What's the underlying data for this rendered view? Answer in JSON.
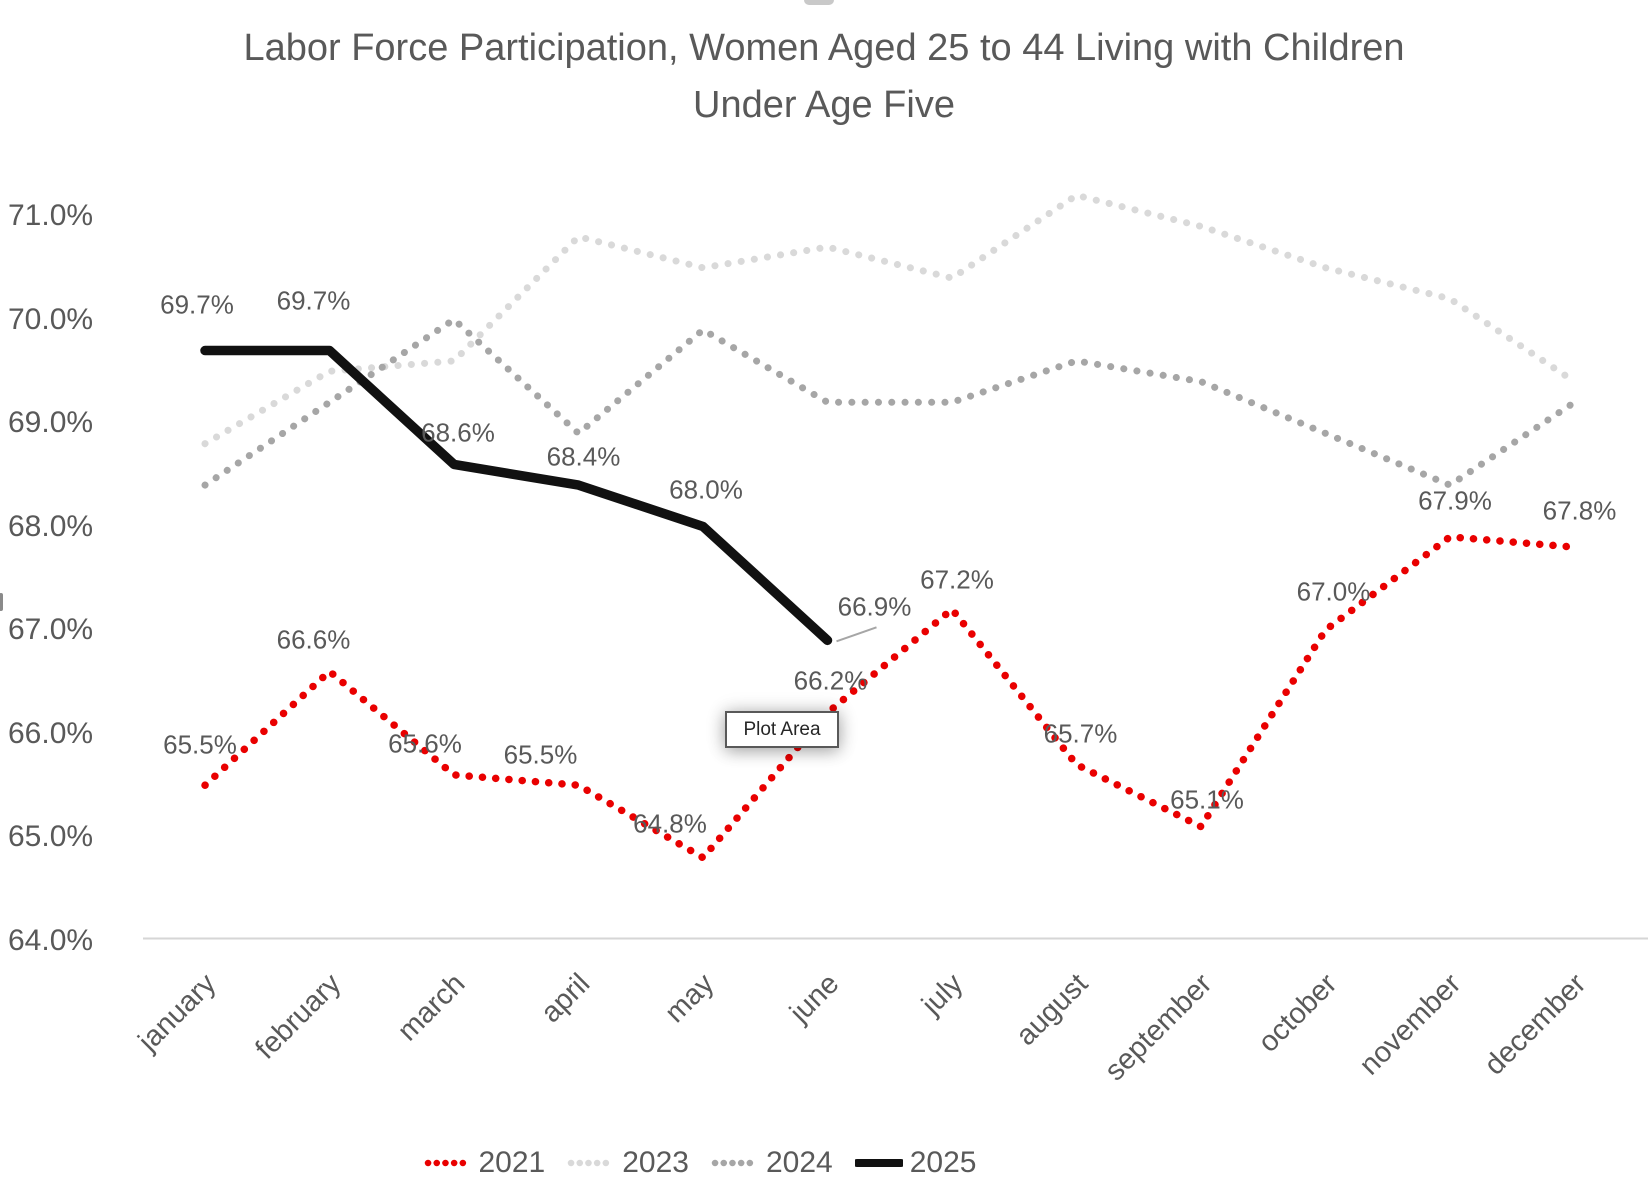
{
  "title": {
    "line1": "Labor Force Participation, Women Aged 25 to 44 Living with Children",
    "line2": "Under Age Five"
  },
  "tooltip": {
    "text": "Plot Area"
  },
  "colors": {
    "background": "#ffffff",
    "title_text": "#595959",
    "axis_text": "#595959",
    "data_label_text": "#595959",
    "axis_line": "#d6d6d6",
    "leader_line": "#a6a6a6"
  },
  "chart_data": {
    "type": "line",
    "title": "Labor Force Participation, Women Aged 25 to 44 Living with Children Under Age Five",
    "categories": [
      "january",
      "february",
      "march",
      "april",
      "may",
      "june",
      "july",
      "august",
      "september",
      "october",
      "november",
      "december"
    ],
    "xlabel": "",
    "ylabel": "",
    "y_axis": {
      "min": 64.0,
      "max": 71.0,
      "step": 1.0,
      "gridlines": "baseline-only",
      "ticks": [
        {
          "label": "71.0%",
          "value": 71.0
        },
        {
          "label": "70.0%",
          "value": 70.0
        },
        {
          "label": "69.0%",
          "value": 69.0
        },
        {
          "label": "68.0%",
          "value": 68.0
        },
        {
          "label": "67.0%",
          "value": 67.0
        },
        {
          "label": "66.0%",
          "value": 66.0
        },
        {
          "label": "65.0%",
          "value": 65.0
        },
        {
          "label": "64.0%",
          "value": 64.0
        }
      ]
    },
    "legend": {
      "position": "bottom",
      "items": [
        "2021",
        "2023",
        "2024",
        "2025"
      ]
    },
    "series": [
      {
        "name": "2021",
        "color": "#e90000",
        "style": "dotted",
        "values": [
          65.5,
          66.6,
          65.6,
          65.5,
          64.8,
          66.2,
          67.2,
          65.7,
          65.1,
          67.0,
          67.9,
          67.8
        ],
        "point_labels": [
          "65.5%",
          "66.6%",
          "65.6%",
          "65.5%",
          "64.8%",
          "66.2%",
          "67.2%",
          "65.7%",
          "65.1%",
          "67.0%",
          "67.9%",
          "67.8%"
        ]
      },
      {
        "name": "2023",
        "color": "#d9d9d9",
        "style": "dotted",
        "values": [
          68.8,
          69.5,
          69.6,
          70.8,
          70.5,
          70.7,
          70.4,
          71.2,
          70.9,
          70.5,
          70.2,
          69.4
        ],
        "point_labels": null
      },
      {
        "name": "2024",
        "color": "#a6a6a6",
        "style": "dotted",
        "values": [
          68.4,
          69.2,
          70.0,
          68.9,
          69.9,
          69.2,
          69.2,
          69.6,
          69.4,
          68.9,
          68.4,
          69.2
        ],
        "point_labels": null
      },
      {
        "name": "2025",
        "color": "#111111",
        "style": "solid",
        "values": [
          69.7,
          69.7,
          68.6,
          68.4,
          68.0,
          66.9
        ],
        "point_labels": [
          "69.7%",
          "69.7%",
          "68.6%",
          "68.4%",
          "68.0%",
          "66.9%"
        ],
        "last_label_has_leader_line": true
      }
    ]
  }
}
